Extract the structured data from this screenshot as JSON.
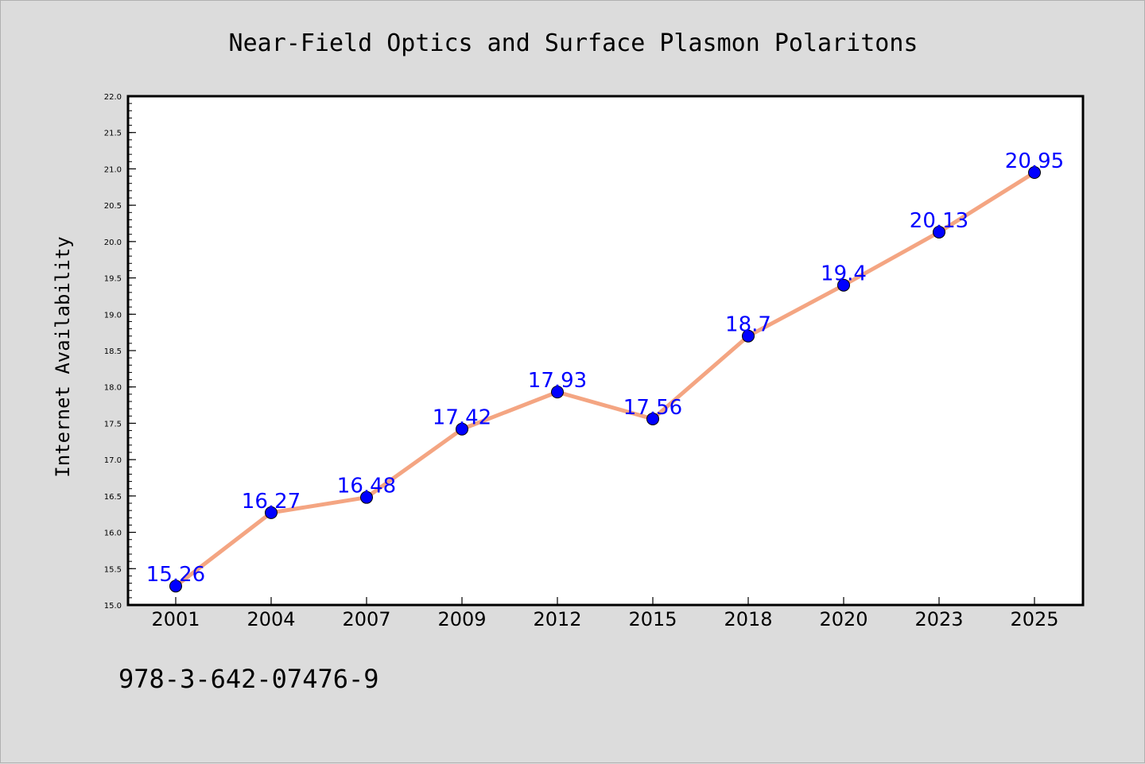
{
  "chart_data": {
    "type": "line",
    "title": "Near-Field Optics and Surface Plasmon Polaritons",
    "xlabel": "",
    "ylabel": "Internet Availability",
    "categories": [
      "2001",
      "2004",
      "2007",
      "2009",
      "2012",
      "2015",
      "2018",
      "2020",
      "2023",
      "2025"
    ],
    "series": [
      {
        "values": [
          15.26,
          16.27,
          16.48,
          17.42,
          17.93,
          17.56,
          18.7,
          19.4,
          20.13,
          20.95
        ],
        "labels": [
          "15.26",
          "16.27",
          "16.48",
          "17.42",
          "17.93",
          "17.56",
          "18.7",
          "19.4",
          "20.13",
          "20.95"
        ],
        "line_color": "#f4a582",
        "marker_color": "#0000ff"
      }
    ],
    "ylim": [
      15.0,
      22.0
    ],
    "yticks": [
      "15.0",
      "15.5",
      "16.0",
      "16.5",
      "17.0",
      "17.5",
      "18.0",
      "18.5",
      "19.0",
      "19.5",
      "20.0",
      "20.5",
      "21.0",
      "21.5",
      "22.0"
    ],
    "grid": false,
    "legend": "none",
    "data_label_color": "#0000ff"
  },
  "footer": {
    "isbn": "978-3-642-07476-9"
  }
}
